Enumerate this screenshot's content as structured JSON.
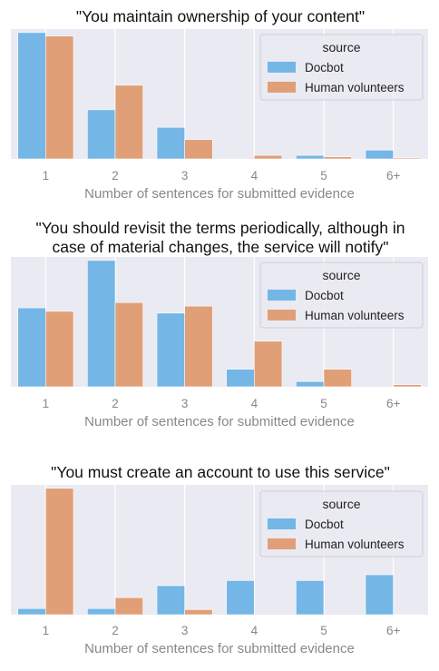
{
  "colors": {
    "docbot": "#74b6e6",
    "human": "#e09f77",
    "panel_bg": "#eaeaf2",
    "grid": "#ffffff",
    "tick_text": "#888888",
    "title_text": "#111111"
  },
  "chart_data": [
    {
      "type": "bar",
      "title": "\"You maintain ownership of your content\"",
      "xlabel": "Number of sentences for submitted evidence",
      "ylabel": "",
      "categories": [
        "1",
        "2",
        "3",
        "4",
        "5",
        "6+"
      ],
      "series": [
        {
          "name": "Docbot",
          "values": [
            0.36,
            0.14,
            0.09,
            0.0,
            0.01,
            0.025
          ]
        },
        {
          "name": "Human volunteers",
          "values": [
            0.35,
            0.21,
            0.055,
            0.01,
            0.006,
            0.003
          ]
        }
      ],
      "ylim": [
        0,
        0.37
      ],
      "grid": true,
      "legend": {
        "title": "source",
        "position": "top-right"
      }
    },
    {
      "type": "bar",
      "title": "\"You should revisit the terms periodically, although in case of material changes, the service will notify\"",
      "title_lines": [
        "\"You should revisit the terms periodically, although in",
        "case of material changes, the service will notify\""
      ],
      "xlabel": "Number of sentences for submitted evidence",
      "ylabel": "",
      "categories": [
        "1",
        "2",
        "3",
        "4",
        "5",
        "6+"
      ],
      "series": [
        {
          "name": "Docbot",
          "values": [
            0.225,
            0.36,
            0.21,
            0.05,
            0.015,
            0.0
          ]
        },
        {
          "name": "Human volunteers",
          "values": [
            0.215,
            0.24,
            0.23,
            0.13,
            0.05,
            0.006
          ]
        }
      ],
      "ylim": [
        0,
        0.37
      ],
      "grid": true,
      "legend": {
        "title": "source",
        "position": "top-right"
      }
    },
    {
      "type": "bar",
      "title": "\"You must create an account to use this service\"",
      "xlabel": "Number of sentences for submitted evidence",
      "ylabel": "",
      "categories": [
        "1",
        "2",
        "3",
        "4",
        "5",
        "6+"
      ],
      "series": [
        {
          "name": "Docbot",
          "values": [
            0.018,
            0.018,
            0.085,
            0.1,
            0.1,
            0.117
          ]
        },
        {
          "name": "Human volunteers",
          "values": [
            0.37,
            0.05,
            0.015,
            0.0,
            0.0,
            0.002
          ]
        }
      ],
      "ylim": [
        0,
        0.38
      ],
      "grid": true,
      "legend": {
        "title": "source",
        "position": "top-right"
      }
    }
  ]
}
